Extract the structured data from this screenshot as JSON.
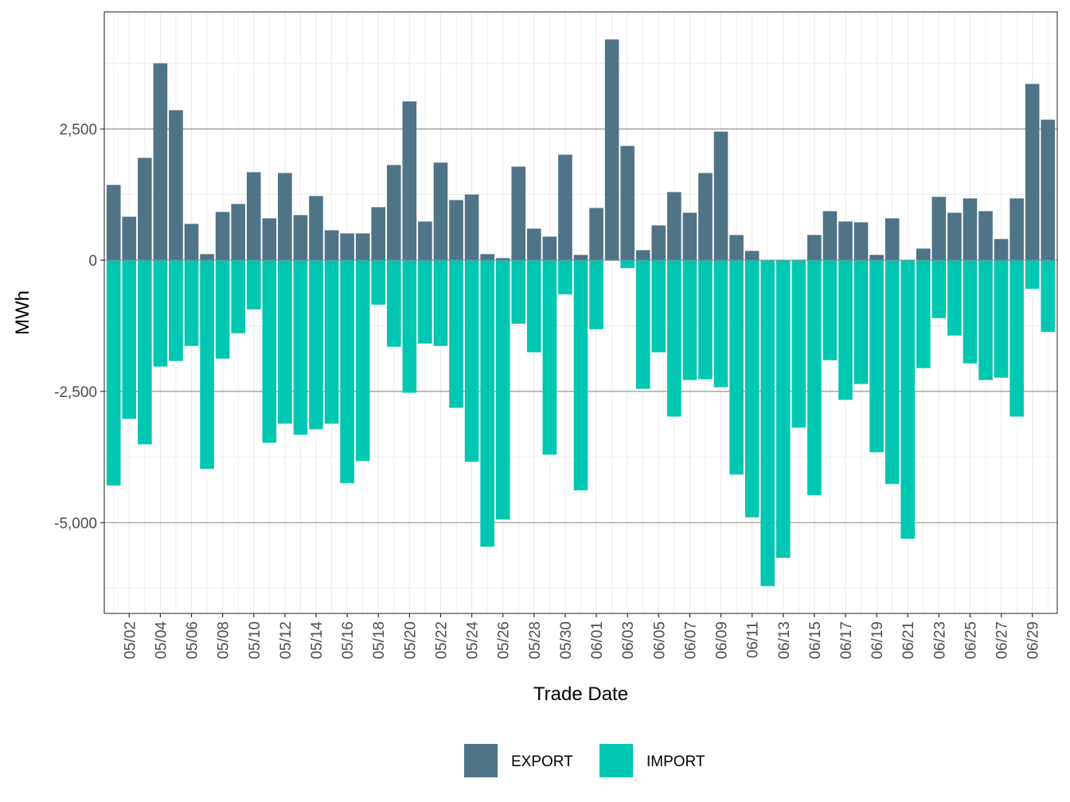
{
  "chart_data": {
    "type": "bar",
    "stacked": true,
    "title": "",
    "xlabel": "Trade Date",
    "ylabel": "MWh",
    "ylim": [
      -6730,
      4730
    ],
    "y_ticks": [
      -5000,
      -2500,
      0,
      2500
    ],
    "y_tick_labels": [
      "-5,000",
      "-2,500",
      "0",
      "2,500"
    ],
    "y_minor_ticks": [
      -6250,
      -3750,
      -1250,
      1250,
      3750
    ],
    "grid": true,
    "legend_position": "bottom",
    "categories": [
      "05/01",
      "05/02",
      "05/03",
      "05/04",
      "05/05",
      "05/06",
      "05/07",
      "05/08",
      "05/09",
      "05/10",
      "05/11",
      "05/12",
      "05/13",
      "05/14",
      "05/15",
      "05/16",
      "05/17",
      "05/18",
      "05/19",
      "05/20",
      "05/21",
      "05/22",
      "05/23",
      "05/24",
      "05/25",
      "05/26",
      "05/27",
      "05/28",
      "05/29",
      "05/30",
      "05/31",
      "06/01",
      "06/02",
      "06/03",
      "06/04",
      "06/05",
      "06/06",
      "06/07",
      "06/08",
      "06/09",
      "06/10",
      "06/11",
      "06/12",
      "06/13",
      "06/14",
      "06/15",
      "06/16",
      "06/17",
      "06/18",
      "06/19",
      "06/20",
      "06/21",
      "06/22",
      "06/23",
      "06/24",
      "06/25",
      "06/26",
      "06/27",
      "06/28",
      "06/29",
      "06/30"
    ],
    "x_tick_labels": [
      "05/02",
      "05/04",
      "05/06",
      "05/08",
      "05/10",
      "05/12",
      "05/14",
      "05/16",
      "05/18",
      "05/20",
      "05/22",
      "05/24",
      "05/26",
      "05/28",
      "05/30",
      "06/01",
      "06/03",
      "06/05",
      "06/07",
      "06/09",
      "06/11",
      "06/13",
      "06/15",
      "06/17",
      "06/19",
      "06/21",
      "06/23",
      "06/25",
      "06/27",
      "06/29"
    ],
    "series": [
      {
        "name": "EXPORT",
        "color": "#4F7387",
        "values": [
          1434,
          828,
          1949,
          3752,
          2858,
          692,
          116,
          919,
          1071,
          1677,
          798,
          1661,
          859,
          1222,
          571,
          510,
          510,
          1010,
          1813,
          3025,
          737,
          1859,
          1146,
          1252,
          116,
          40,
          1783,
          601,
          449,
          2010,
          101,
          995,
          4207,
          2177,
          192,
          662,
          1298,
          904,
          1661,
          2449,
          480,
          177,
          0,
          0,
          10,
          480,
          934,
          737,
          722,
          101,
          798,
          0,
          222,
          1207,
          904,
          1177,
          934,
          404,
          1177,
          3358,
          2677
        ]
      },
      {
        "name": "IMPORT",
        "color": "#00C7B1",
        "values": [
          -4294,
          -3024,
          -3508,
          -2026,
          -1920,
          -1633,
          -3977,
          -1875,
          -1391,
          -937,
          -3478,
          -3115,
          -3326,
          -3220,
          -3115,
          -4249,
          -3826,
          -847,
          -1648,
          -2525,
          -1588,
          -1633,
          -2812,
          -3841,
          -5459,
          -4940,
          -1210,
          -1754,
          -3705,
          -650,
          -4385,
          -1315,
          -10,
          -151,
          -2450,
          -1754,
          -2979,
          -2283,
          -2268,
          -2419,
          -4083,
          -4899,
          -6210,
          -5670,
          -3190,
          -4476,
          -1905,
          -2661,
          -2359,
          -3659,
          -4264,
          -5307,
          -2056,
          -1104,
          -1436,
          -1966,
          -2283,
          -2238,
          -2979,
          -544,
          -1366
        ]
      }
    ],
    "legend": [
      {
        "label": "EXPORT",
        "color": "#4F7387"
      },
      {
        "label": "IMPORT",
        "color": "#00C7B1"
      }
    ]
  }
}
